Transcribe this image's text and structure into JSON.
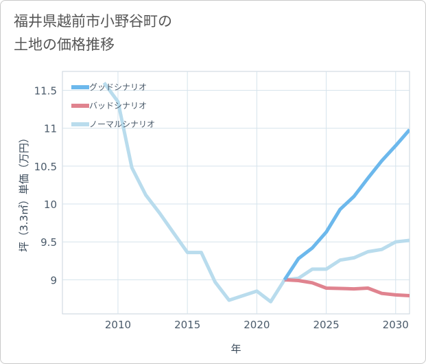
{
  "chart_data": {
    "type": "line",
    "title_lines": [
      "福井県越前市小野谷町の",
      "土地の価格推移"
    ],
    "xlabel": "年",
    "ylabel": "坪（3.3㎡）単価（万円）",
    "xlim": [
      2006,
      2031
    ],
    "ylim": [
      8.55,
      11.75
    ],
    "xticks": [
      2010,
      2015,
      2020,
      2025,
      2030
    ],
    "yticks": [
      9,
      9.5,
      10,
      10.5,
      11,
      11.5
    ],
    "ytick_labels": [
      "9",
      "9.5",
      "10",
      "10.5",
      "11",
      "11.5"
    ],
    "grid": true,
    "legend_position": "top-left",
    "series": [
      {
        "name": "グッドシナリオ",
        "color": "#6cb8ec",
        "x": [
          2022,
          2023,
          2024,
          2025,
          2026,
          2027,
          2028,
          2029,
          2030,
          2031
        ],
        "y": [
          9.0,
          9.28,
          9.42,
          9.63,
          9.93,
          10.1,
          10.34,
          10.57,
          10.77,
          10.98
        ]
      },
      {
        "name": "バッドシナリオ",
        "color": "#e0838f",
        "x": [
          2022,
          2023,
          2024,
          2025,
          2026,
          2027,
          2028,
          2029,
          2030,
          2031
        ],
        "y": [
          9.0,
          8.99,
          8.96,
          8.89,
          8.885,
          8.88,
          8.89,
          8.82,
          8.8,
          8.79
        ]
      },
      {
        "name": "ノーマルシナリオ",
        "color": "#b9dced",
        "x": [
          2009,
          2010,
          2011,
          2012,
          2013,
          2014,
          2015,
          2016,
          2017,
          2018,
          2019,
          2020,
          2021,
          2022,
          2023,
          2024,
          2025,
          2026,
          2027,
          2028,
          2029,
          2030,
          2031
        ],
        "y": [
          11.6,
          11.35,
          10.48,
          10.12,
          9.88,
          9.62,
          9.36,
          9.36,
          8.97,
          8.73,
          8.79,
          8.85,
          8.71,
          9.0,
          9.02,
          9.14,
          9.14,
          9.26,
          9.29,
          9.37,
          9.4,
          9.5,
          9.52
        ]
      }
    ]
  }
}
